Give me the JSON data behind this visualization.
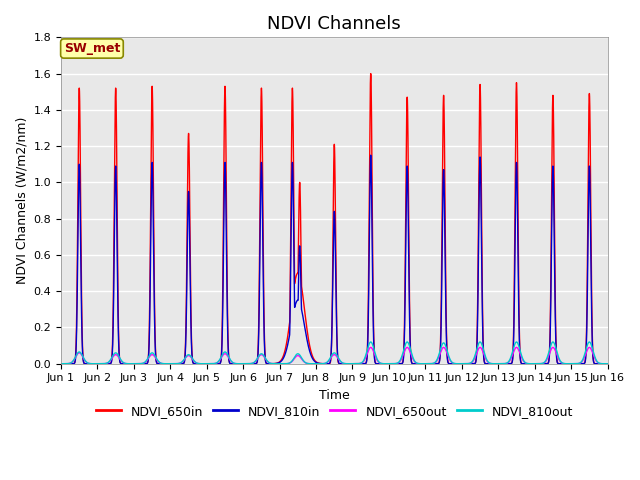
{
  "title": "NDVI Channels",
  "xlabel": "Time",
  "ylabel": "NDVI Channels (W/m2/nm)",
  "ylim": [
    0,
    1.8
  ],
  "annotation_text": "SW_met",
  "colors": {
    "NDVI_650in": "#ff0000",
    "NDVI_810in": "#0000cc",
    "NDVI_650out": "#ff00ff",
    "NDVI_810out": "#00cccc"
  },
  "legend_labels": [
    "NDVI_650in",
    "NDVI_810in",
    "NDVI_650out",
    "NDVI_810out"
  ],
  "xtick_labels": [
    "Jun 1",
    "Jun 2",
    "Jun 3",
    "Jun 4",
    "Jun 5",
    "Jun 6",
    "Jun 7",
    "Jun 8",
    "Jun 9",
    "Jun 10",
    "Jun 11",
    "Jun 12",
    "Jun 13",
    "Jun 14",
    "Jun 15",
    "Jun 16"
  ],
  "num_days": 15,
  "background_color": "#e8e8e8",
  "grid_color": "white",
  "peak_650in": [
    1.52,
    1.52,
    1.53,
    1.27,
    1.53,
    1.52,
    1.52,
    1.21,
    1.6,
    1.47,
    1.48,
    1.54,
    1.55,
    1.48,
    1.49
  ],
  "peak_810in": [
    1.1,
    1.09,
    1.11,
    0.95,
    1.11,
    1.11,
    1.11,
    0.84,
    1.15,
    1.09,
    1.07,
    1.14,
    1.11,
    1.09,
    1.09
  ],
  "peak_650out": [
    0.06,
    0.05,
    0.05,
    0.045,
    0.055,
    0.05,
    0.045,
    0.05,
    0.09,
    0.09,
    0.09,
    0.09,
    0.09,
    0.09,
    0.09
  ],
  "peak_810out": [
    0.065,
    0.06,
    0.06,
    0.05,
    0.065,
    0.055,
    0.055,
    0.06,
    0.12,
    0.12,
    0.115,
    0.12,
    0.12,
    0.12,
    0.12
  ],
  "title_fontsize": 13,
  "label_fontsize": 9,
  "tick_fontsize": 8
}
